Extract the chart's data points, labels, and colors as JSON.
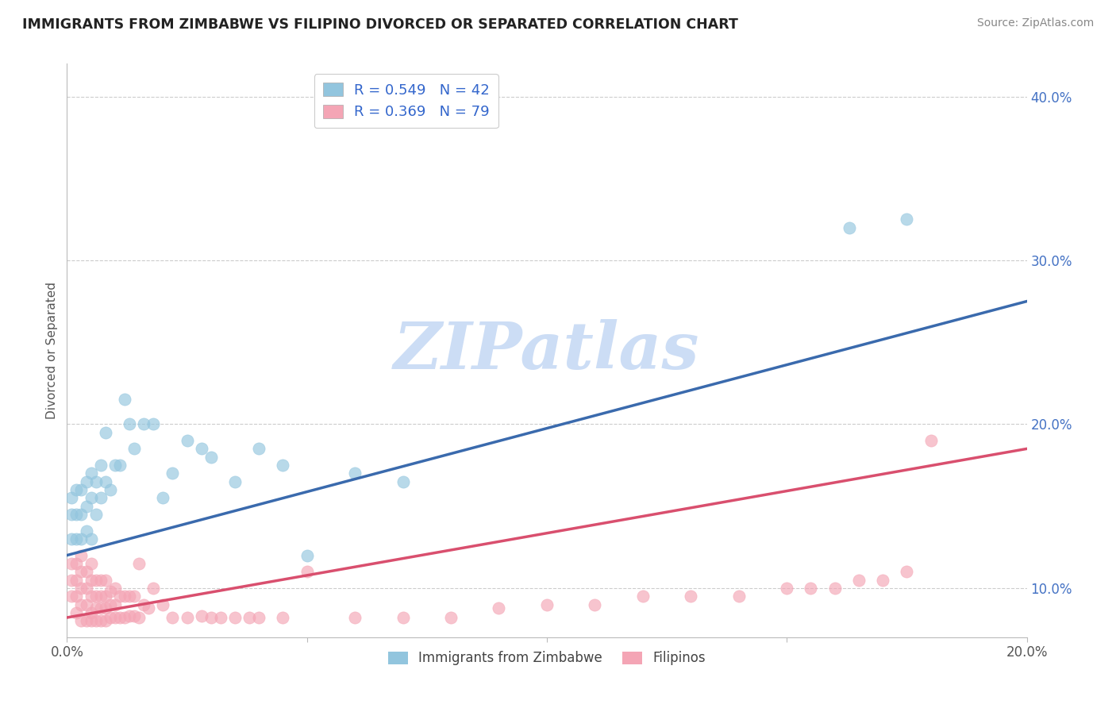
{
  "title": "IMMIGRANTS FROM ZIMBABWE VS FILIPINO DIVORCED OR SEPARATED CORRELATION CHART",
  "source": "Source: ZipAtlas.com",
  "ylabel": "Divorced or Separated",
  "xlim": [
    0.0,
    0.2
  ],
  "ylim": [
    0.07,
    0.42
  ],
  "xticks": [
    0.0,
    0.05,
    0.1,
    0.15,
    0.2
  ],
  "xtick_labels": [
    "0.0%",
    "",
    "",
    "",
    "20.0%"
  ],
  "yticks": [
    0.1,
    0.2,
    0.3,
    0.4
  ],
  "ytick_labels": [
    "10.0%",
    "20.0%",
    "30.0%",
    "40.0%"
  ],
  "series1_label": "Immigrants from Zimbabwe",
  "series1_color": "#92c5de",
  "series1_line_color": "#3a6aad",
  "series1_R": 0.549,
  "series1_N": 42,
  "series2_label": "Filipinos",
  "series2_color": "#f4a5b5",
  "series2_line_color": "#d94f6e",
  "series2_R": 0.369,
  "series2_N": 79,
  "legend_text_color": "#3366cc",
  "watermark": "ZIPatlas",
  "watermark_color": "#ccddf5",
  "background_color": "#ffffff",
  "grid_color": "#cccccc",
  "title_fontsize": 12.5,
  "blue_line_x0": 0.0,
  "blue_line_y0": 0.12,
  "blue_line_x1": 0.2,
  "blue_line_y1": 0.275,
  "pink_line_x0": 0.0,
  "pink_line_y0": 0.082,
  "pink_line_x1": 0.2,
  "pink_line_y1": 0.185,
  "s1_x": [
    0.001,
    0.001,
    0.001,
    0.002,
    0.002,
    0.002,
    0.003,
    0.003,
    0.003,
    0.004,
    0.004,
    0.004,
    0.005,
    0.005,
    0.005,
    0.006,
    0.006,
    0.007,
    0.007,
    0.008,
    0.008,
    0.009,
    0.01,
    0.011,
    0.012,
    0.013,
    0.014,
    0.016,
    0.018,
    0.02,
    0.022,
    0.025,
    0.028,
    0.03,
    0.035,
    0.04,
    0.045,
    0.05,
    0.06,
    0.07,
    0.163,
    0.175
  ],
  "s1_y": [
    0.13,
    0.145,
    0.155,
    0.13,
    0.145,
    0.16,
    0.13,
    0.145,
    0.16,
    0.135,
    0.15,
    0.165,
    0.13,
    0.155,
    0.17,
    0.145,
    0.165,
    0.155,
    0.175,
    0.165,
    0.195,
    0.16,
    0.175,
    0.175,
    0.215,
    0.2,
    0.185,
    0.2,
    0.2,
    0.155,
    0.17,
    0.19,
    0.185,
    0.18,
    0.165,
    0.185,
    0.175,
    0.12,
    0.17,
    0.165,
    0.32,
    0.325
  ],
  "s2_x": [
    0.001,
    0.001,
    0.001,
    0.002,
    0.002,
    0.002,
    0.002,
    0.003,
    0.003,
    0.003,
    0.003,
    0.003,
    0.004,
    0.004,
    0.004,
    0.004,
    0.005,
    0.005,
    0.005,
    0.005,
    0.005,
    0.006,
    0.006,
    0.006,
    0.006,
    0.007,
    0.007,
    0.007,
    0.007,
    0.008,
    0.008,
    0.008,
    0.008,
    0.009,
    0.009,
    0.009,
    0.01,
    0.01,
    0.01,
    0.011,
    0.011,
    0.012,
    0.012,
    0.013,
    0.013,
    0.014,
    0.014,
    0.015,
    0.015,
    0.016,
    0.017,
    0.018,
    0.02,
    0.022,
    0.025,
    0.028,
    0.03,
    0.032,
    0.035,
    0.038,
    0.04,
    0.045,
    0.05,
    0.06,
    0.07,
    0.08,
    0.09,
    0.1,
    0.11,
    0.12,
    0.13,
    0.14,
    0.15,
    0.155,
    0.16,
    0.165,
    0.17,
    0.175,
    0.18
  ],
  "s2_y": [
    0.095,
    0.105,
    0.115,
    0.085,
    0.095,
    0.105,
    0.115,
    0.08,
    0.09,
    0.1,
    0.11,
    0.12,
    0.08,
    0.09,
    0.1,
    0.11,
    0.08,
    0.085,
    0.095,
    0.105,
    0.115,
    0.08,
    0.088,
    0.095,
    0.105,
    0.08,
    0.088,
    0.095,
    0.105,
    0.08,
    0.088,
    0.095,
    0.105,
    0.082,
    0.09,
    0.098,
    0.082,
    0.09,
    0.1,
    0.082,
    0.095,
    0.082,
    0.095,
    0.083,
    0.095,
    0.083,
    0.095,
    0.082,
    0.115,
    0.09,
    0.088,
    0.1,
    0.09,
    0.082,
    0.082,
    0.083,
    0.082,
    0.082,
    0.082,
    0.082,
    0.082,
    0.082,
    0.11,
    0.082,
    0.082,
    0.082,
    0.088,
    0.09,
    0.09,
    0.095,
    0.095,
    0.095,
    0.1,
    0.1,
    0.1,
    0.105,
    0.105,
    0.11,
    0.19
  ]
}
